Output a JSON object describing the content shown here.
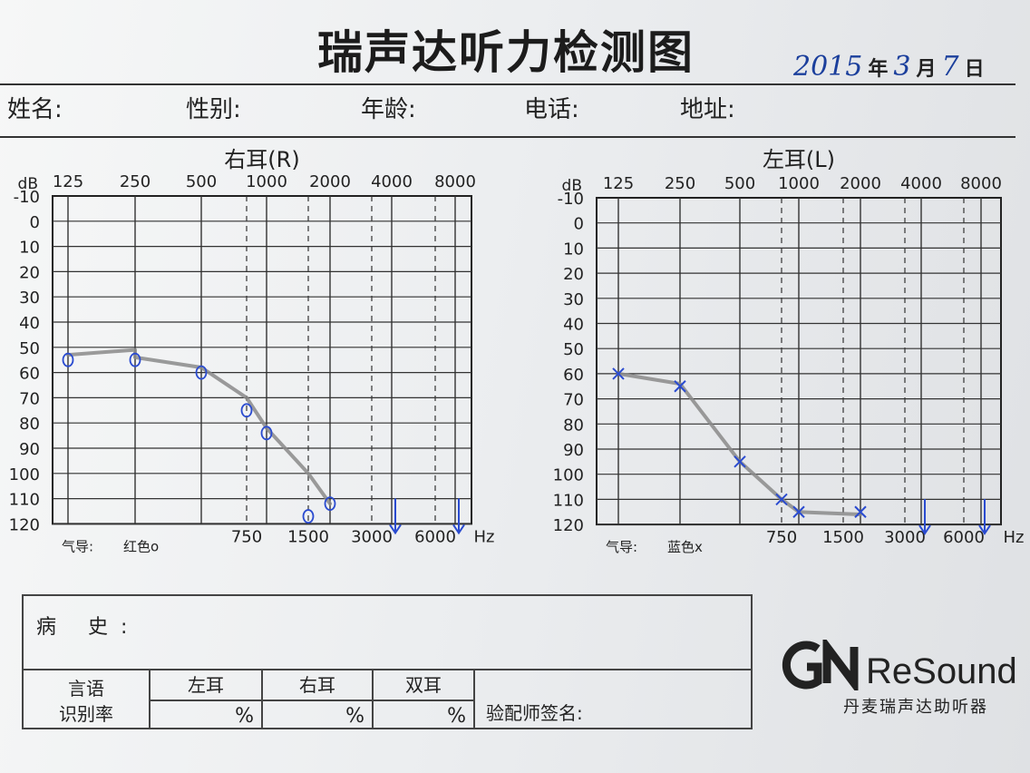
{
  "form": {
    "title": "瑞声达听力检测图",
    "date": {
      "year": "2015",
      "year_unit": "年",
      "month": "3",
      "month_unit": "月",
      "day": "7",
      "day_unit": "日"
    },
    "info_labels": {
      "name": "姓名:",
      "gender": "性别:",
      "age": "年龄:",
      "phone": "电话:",
      "address": "地址:"
    }
  },
  "charts": {
    "right": {
      "title": "右耳(R)",
      "legend_prefix": "气导:",
      "legend": "红色o"
    },
    "left": {
      "title": "左耳(L)",
      "legend_prefix": "气导:",
      "legend": "蓝色x"
    },
    "unit_db": "dB",
    "unit_hz": "Hz"
  },
  "chart_data": [
    {
      "type": "scatter",
      "title": "右耳(R)",
      "xlabel": "Hz",
      "ylabel": "dB",
      "x_top_ticks": [
        "125",
        "250",
        "500",
        "1000",
        "2000",
        "4000",
        "8000"
      ],
      "x_bottom_ticks": [
        "750",
        "1500",
        "3000",
        "6000"
      ],
      "y_ticks": [
        "-10",
        "0",
        "10",
        "20",
        "30",
        "40",
        "50",
        "60",
        "70",
        "80",
        "90",
        "100",
        "110",
        "120"
      ],
      "ylim": [
        -10,
        120
      ],
      "marker": "o",
      "color": "#2a4bd0",
      "series": [
        {
          "points": [
            {
              "x": 125,
              "y": 55
            },
            {
              "x": 250,
              "y": 55
            },
            {
              "x": 500,
              "y": 60
            },
            {
              "x": 750,
              "y": 75
            },
            {
              "x": 1000,
              "y": 84
            },
            {
              "x": 1500,
              "y": 117
            },
            {
              "x": 2000,
              "y": 112
            }
          ]
        }
      ],
      "no_response_arrows": [
        4000,
        8000
      ],
      "curve": [
        [
          125,
          53
        ],
        [
          250,
          51
        ],
        [
          250,
          54
        ],
        [
          500,
          58
        ],
        [
          750,
          70
        ],
        [
          1000,
          82
        ],
        [
          1500,
          100
        ],
        [
          2000,
          112
        ]
      ]
    },
    {
      "type": "scatter",
      "title": "左耳(L)",
      "xlabel": "Hz",
      "ylabel": "dB",
      "x_top_ticks": [
        "125",
        "250",
        "500",
        "1000",
        "2000",
        "4000",
        "8000"
      ],
      "x_bottom_ticks": [
        "750",
        "1500",
        "3000",
        "6000"
      ],
      "y_ticks": [
        "-10",
        "0",
        "10",
        "20",
        "30",
        "40",
        "50",
        "60",
        "70",
        "80",
        "90",
        "100",
        "110",
        "120"
      ],
      "ylim": [
        -10,
        120
      ],
      "marker": "x",
      "color": "#2a4bd0",
      "series": [
        {
          "points": [
            {
              "x": 125,
              "y": 60
            },
            {
              "x": 250,
              "y": 65
            },
            {
              "x": 500,
              "y": 95
            },
            {
              "x": 750,
              "y": 110
            },
            {
              "x": 1000,
              "y": 115
            },
            {
              "x": 2000,
              "y": 115
            }
          ]
        }
      ],
      "no_response_arrows": [
        4000,
        8000
      ],
      "curve": [
        [
          125,
          60
        ],
        [
          250,
          64
        ],
        [
          500,
          95
        ],
        [
          750,
          110
        ],
        [
          1000,
          115
        ],
        [
          2000,
          116
        ]
      ]
    }
  ],
  "history": {
    "label": "病 史:"
  },
  "speech": {
    "label": "言语识别率",
    "label_line1": "言语",
    "label_line2": "识别率",
    "columns": [
      {
        "header": "左耳",
        "unit": "%"
      },
      {
        "header": "右耳",
        "unit": "%"
      },
      {
        "header": "双耳",
        "unit": "%"
      }
    ]
  },
  "signature_label": "验配师签名:",
  "brand": {
    "logo": "GN",
    "name": "ReSound",
    "subtitle": "丹麦瑞声达助听器"
  }
}
